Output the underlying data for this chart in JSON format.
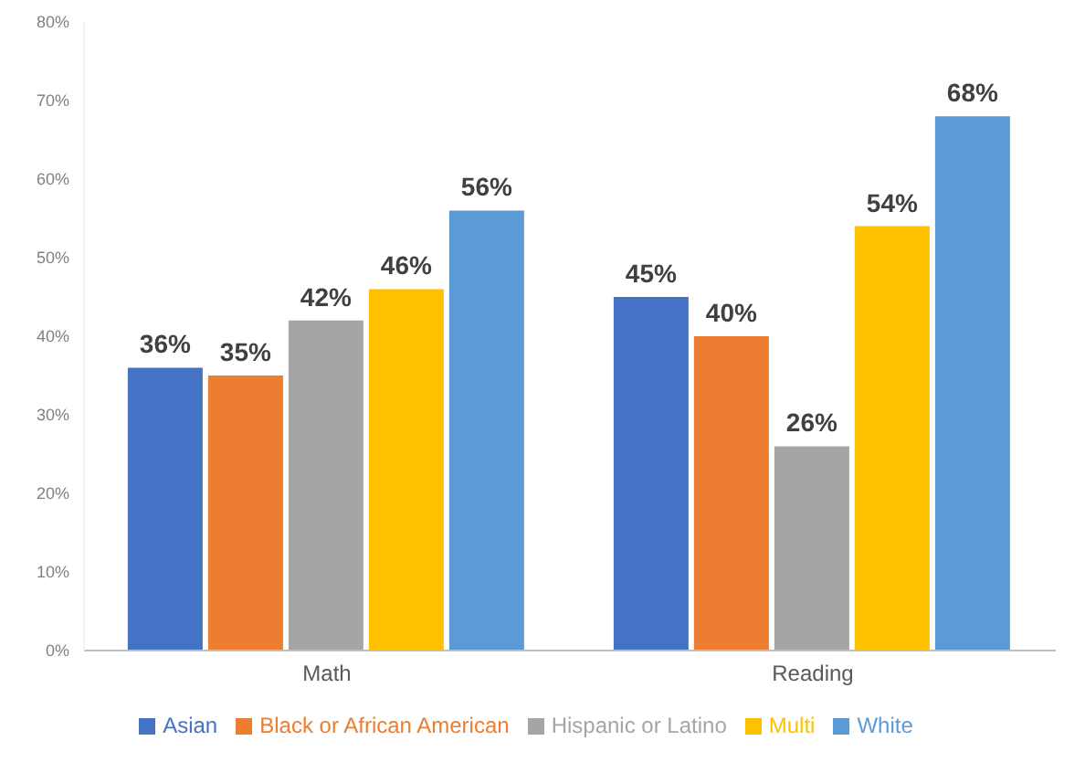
{
  "chart_data": {
    "type": "bar",
    "categories": [
      "Math",
      "Reading"
    ],
    "series": [
      {
        "name": "Asian",
        "color": "#4472c4",
        "values": [
          36,
          45
        ],
        "value_labels": [
          "36%",
          "45%"
        ]
      },
      {
        "name": "Black or African American",
        "color": "#ed7d31",
        "values": [
          35,
          40
        ],
        "value_labels": [
          "35%",
          "40%"
        ]
      },
      {
        "name": "Hispanic or Latino",
        "color": "#a5a5a5",
        "values": [
          42,
          26
        ],
        "value_labels": [
          "42%",
          "26%"
        ]
      },
      {
        "name": "Multi",
        "color": "#ffc000",
        "values": [
          46,
          54
        ],
        "value_labels": [
          "46%",
          "54%"
        ]
      },
      {
        "name": "White",
        "color": "#5b9bd5",
        "values": [
          56,
          68
        ],
        "value_labels": [
          "56%",
          "68%"
        ]
      }
    ],
    "ylim": [
      0,
      80
    ],
    "yticks": [
      {
        "value": 0,
        "label": "0%"
      },
      {
        "value": 10,
        "label": "10%"
      },
      {
        "value": 20,
        "label": "20%"
      },
      {
        "value": 30,
        "label": "30%"
      },
      {
        "value": 40,
        "label": "40%"
      },
      {
        "value": 50,
        "label": "50%"
      },
      {
        "value": 60,
        "label": "60%"
      },
      {
        "value": 70,
        "label": "70%"
      },
      {
        "value": 80,
        "label": "80%"
      }
    ],
    "grid": false,
    "legend": "bottom"
  }
}
